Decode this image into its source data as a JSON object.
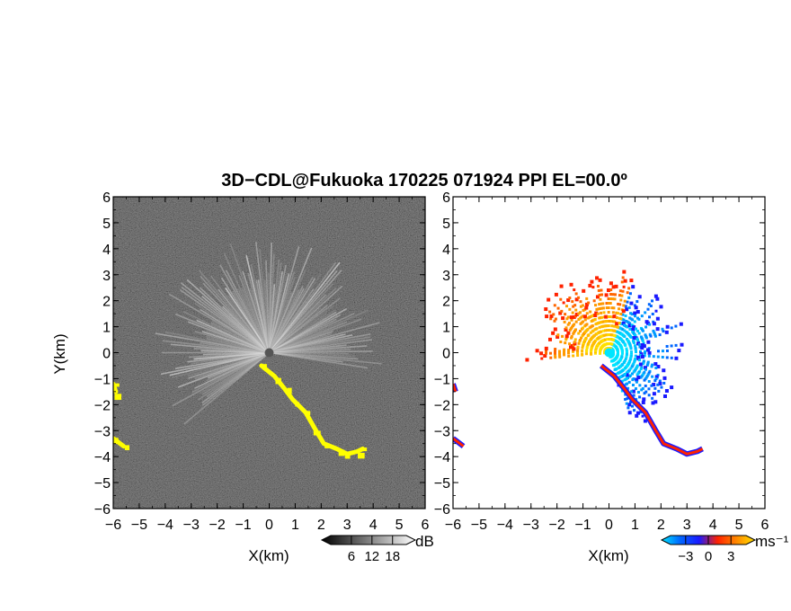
{
  "chart_data": [
    {
      "type": "heatmap",
      "panel": "left",
      "title": "3D−CDL@Fukuoka 170225 071924 PPI EL=00.0º",
      "variable": "backscatter intensity (gray) with yellow echo regions",
      "xlabel": "X(km)",
      "ylabel": "Y(km)",
      "xlim": [
        -6,
        6
      ],
      "ylim": [
        -6,
        6
      ],
      "xticks": [
        "−6",
        "−5",
        "−4",
        "−3",
        "−2",
        "−1",
        "0",
        "1",
        "2",
        "3",
        "4",
        "5",
        "6"
      ],
      "yticks": [
        "6",
        "5",
        "4",
        "3",
        "2",
        "1",
        "0",
        "−1",
        "−2",
        "−3",
        "−4",
        "−5",
        "−6"
      ],
      "colorbar": {
        "unit": "dB",
        "ticks": [
          "6",
          "12",
          "18"
        ],
        "range": [
          0,
          22
        ],
        "colors": [
          "#000000",
          "#ffffff"
        ]
      },
      "features": [
        {
          "name": "bright sector",
          "azimuth_range_deg": [
            -130,
            100
          ],
          "max_range_km": 4.5,
          "color": "#dcdcdc"
        },
        {
          "name": "echo region",
          "x": [
            -0.3,
            0.2,
            0.6,
            0.9,
            1.4,
            1.8,
            2.1,
            2.6,
            3.0,
            3.4,
            3.6
          ],
          "y": [
            -0.5,
            -0.9,
            -1.4,
            -1.8,
            -2.3,
            -3.0,
            -3.5,
            -3.7,
            -3.9,
            -3.8,
            -3.7
          ],
          "color": "#ffff00"
        },
        {
          "name": "echo region west",
          "x": [
            -6.0,
            -5.9
          ],
          "y": [
            -1.2,
            -1.5
          ],
          "color": "#ffff00"
        },
        {
          "name": "echo region southwest",
          "x": [
            -6.0,
            -5.6
          ],
          "y": [
            -3.3,
            -3.6
          ],
          "color": "#ffff00"
        }
      ]
    },
    {
      "type": "heatmap",
      "panel": "right",
      "variable": "radial velocity",
      "xlabel": "X(km)",
      "xlim": [
        -6,
        6
      ],
      "ylim": [
        -6,
        6
      ],
      "xticks": [
        "−6",
        "−5",
        "−4",
        "−3",
        "−2",
        "−1",
        "0",
        "1",
        "2",
        "3",
        "4",
        "5",
        "6"
      ],
      "yticks": [
        "6",
        "5",
        "4",
        "3",
        "2",
        "1",
        "0",
        "−1",
        "−2",
        "−3",
        "−4",
        "−5",
        "−6"
      ],
      "colorbar": {
        "unit": "ms⁻¹",
        "ticks": [
          "−3",
          "0",
          "3"
        ],
        "range": [
          -5,
          5
        ],
        "colors": [
          "#00e5ff",
          "#0066ff",
          "#1a1aff",
          "#ff2200",
          "#ff8800",
          "#ffe000"
        ]
      },
      "features": [
        {
          "name": "approaching (east sector)",
          "azimuth_range_deg": [
            20,
            165
          ],
          "max_range_km": 3.0,
          "velocity_ms": [
            -4,
            -1
          ]
        },
        {
          "name": "receding (west/north sector)",
          "azimuth_range_deg": [
            -95,
            20
          ],
          "max_range_km": 3.2,
          "velocity_ms": [
            1,
            4
          ]
        }
      ]
    }
  ]
}
